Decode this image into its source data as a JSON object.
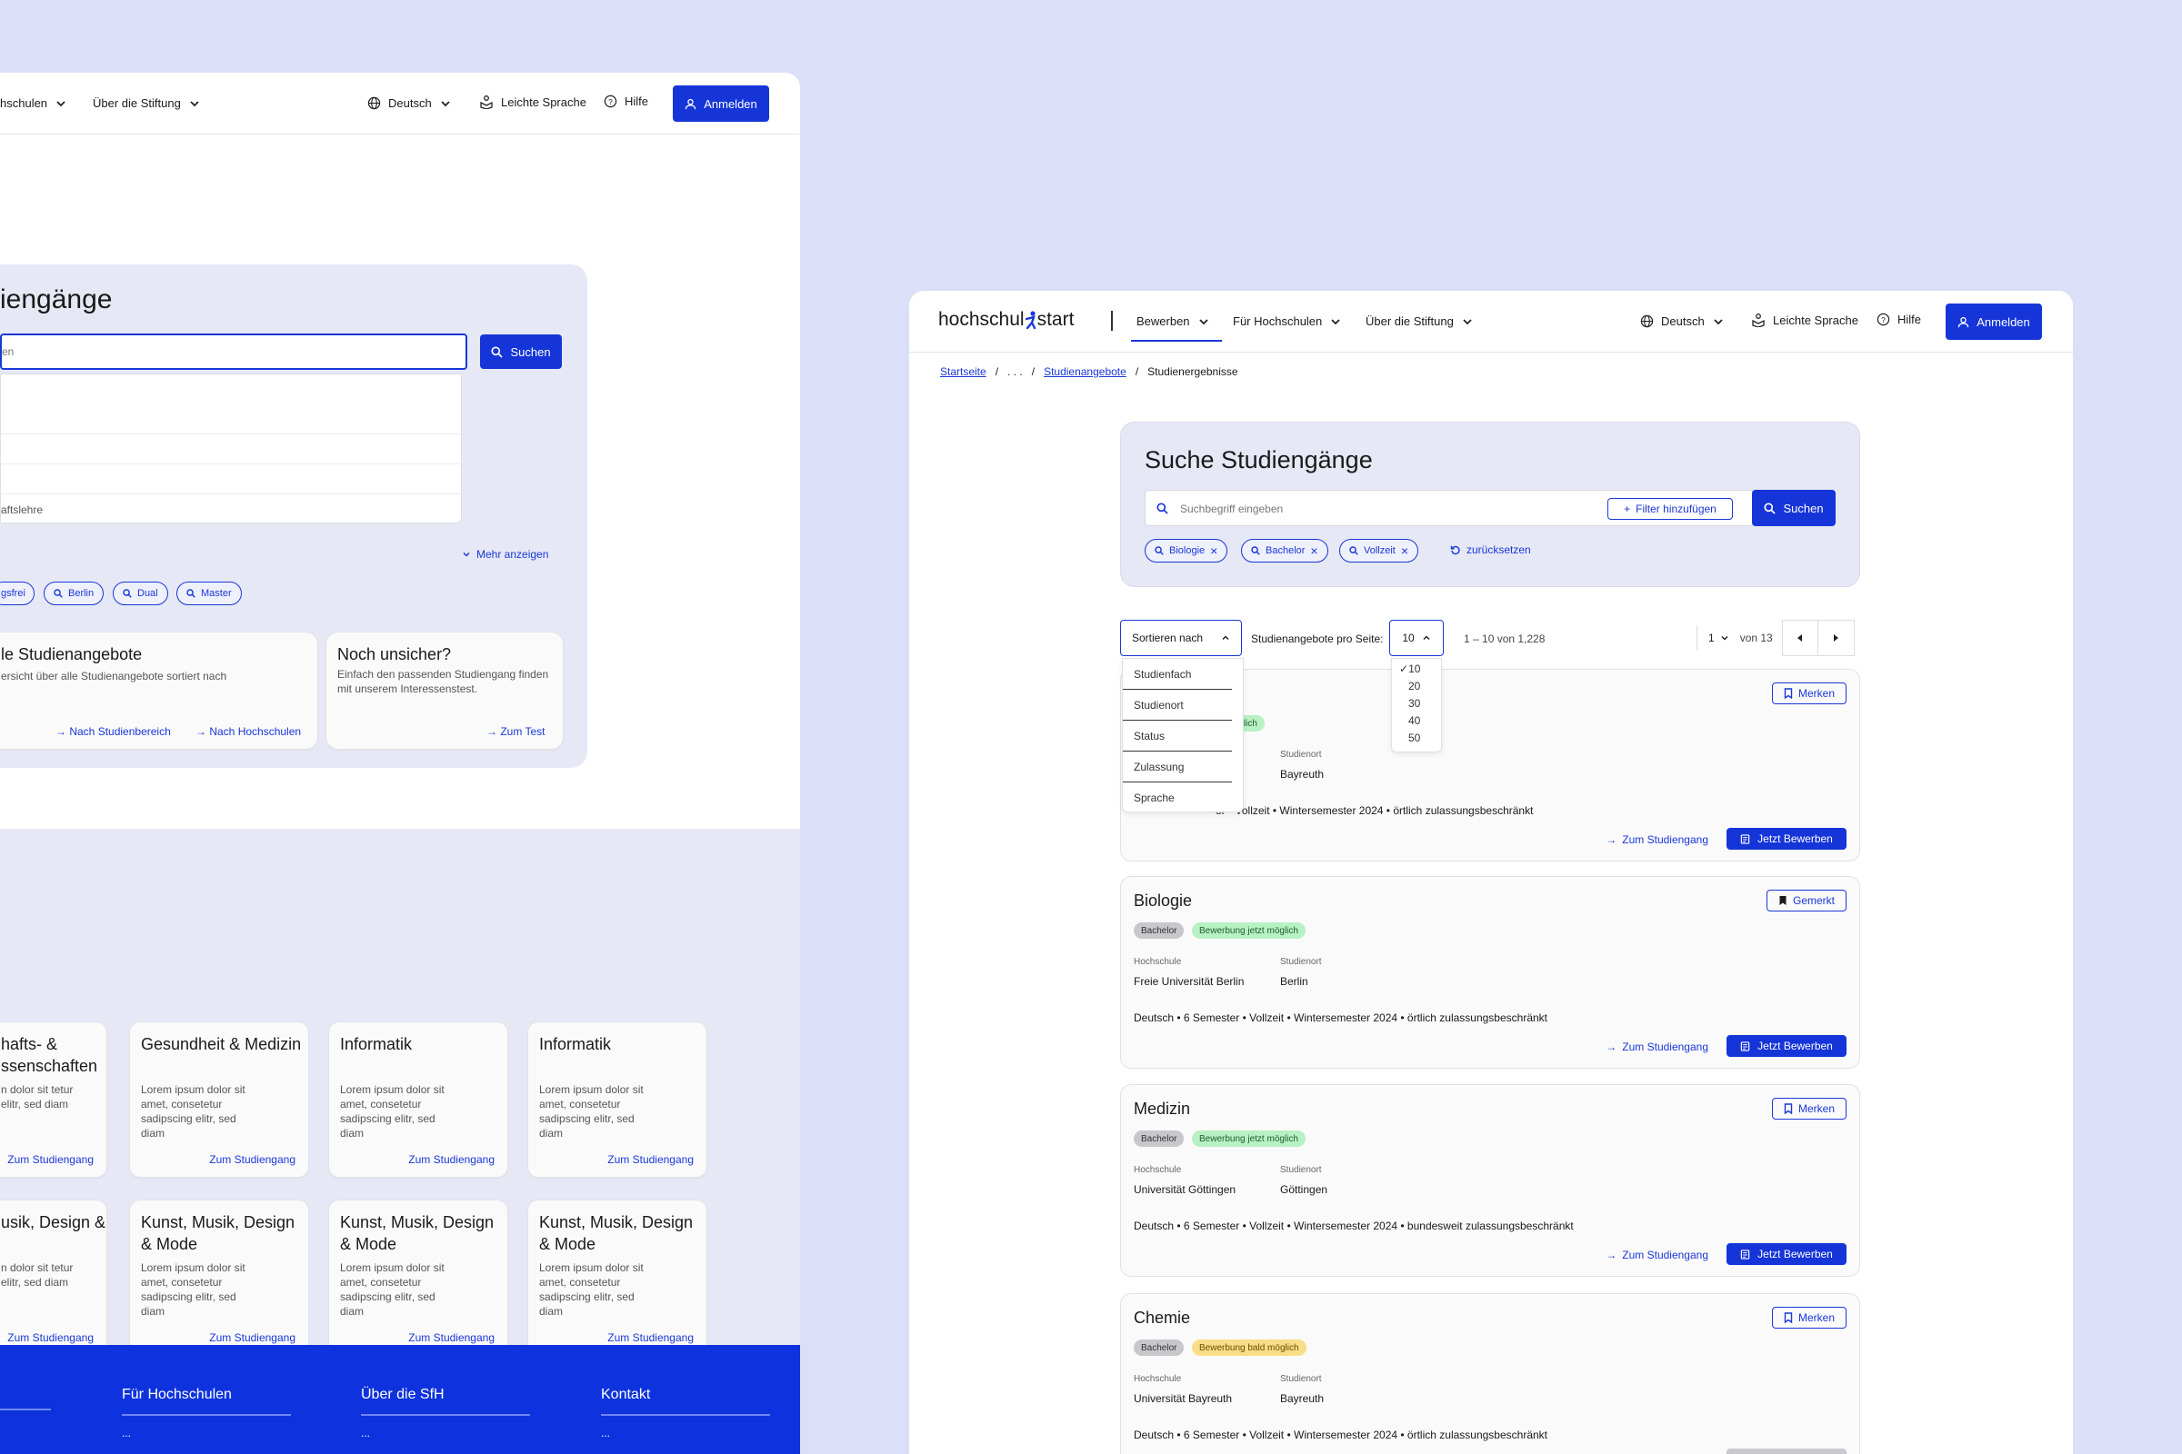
{
  "left": {
    "nav": {
      "item1": "hschulen",
      "item2": "Über die Stiftung",
      "lang": "Deutsch",
      "easy": "Leichte Sprache",
      "help": "Hilfe",
      "login": "Anmelden"
    },
    "search": {
      "title": "iengänge",
      "placeholder": "en",
      "button": "Suchen",
      "suggestion": "aftslehre",
      "more": "Mehr anzeigen"
    },
    "chips": [
      "gsfrei",
      "Berlin",
      "Dual",
      "Master"
    ],
    "promo": [
      {
        "title": "le Studienangebote",
        "text": "ersicht über alle Studienangebote sortiert nach",
        "link1": "Nach Studienbereich",
        "link2": "Nach Hochschulen"
      },
      {
        "title": "Noch unsicher?",
        "text": "Einfach den passenden Studiengang finden mit unserem Interessenstest.",
        "link1": "Zum Test"
      }
    ],
    "cards_row1": [
      {
        "title": "hafts- & ssenschaften",
        "text": "n dolor sit tetur elitr, sed diam",
        "link": "Zum Studiengang"
      },
      {
        "title": "Gesundheit & Medizin",
        "text": "Lorem ipsum dolor sit amet, consetetur sadipscing elitr, sed diam",
        "link": "Zum Studiengang"
      },
      {
        "title": "Informatik",
        "text": "Lorem ipsum dolor sit amet, consetetur sadipscing elitr, sed diam",
        "link": "Zum Studiengang"
      },
      {
        "title": "Informatik",
        "text": "Lorem ipsum dolor sit amet, consetetur sadipscing elitr, sed diam",
        "link": "Zum Studiengang"
      }
    ],
    "cards_row2": [
      {
        "title": "usik, Design &",
        "text": "n dolor sit tetur elitr, sed diam",
        "link": "Zum Studiengang"
      },
      {
        "title": "Kunst, Musik, Design & Mode",
        "text": "Lorem ipsum dolor sit amet, consetetur sadipscing elitr, sed diam",
        "link": "Zum Studiengang"
      },
      {
        "title": "Kunst, Musik, Design & Mode",
        "text": "Lorem ipsum dolor sit amet, consetetur sadipscing elitr, sed diam",
        "link": "Zum Studiengang"
      },
      {
        "title": "Kunst, Musik, Design & Mode",
        "text": "Lorem ipsum dolor sit amet, consetetur sadipscing elitr, sed diam",
        "link": "Zum Studiengang"
      }
    ],
    "footer": [
      {
        "title": "Für Hochschulen",
        "sub": "..."
      },
      {
        "title": "Über die SfH",
        "sub": "..."
      },
      {
        "title": "Kontakt",
        "sub": "..."
      }
    ]
  },
  "right": {
    "logo": {
      "a": "hochschul",
      "b": "start"
    },
    "nav": {
      "item1": "Bewerben",
      "item2": "Für Hochschulen",
      "item3": "Über die Stiftung",
      "lang": "Deutsch",
      "easy": "Leichte Sprache",
      "help": "Hilfe",
      "login": "Anmelden"
    },
    "breadcrumb": {
      "home": "Startseite",
      "sep": "/",
      "ellipsis": ". . .",
      "offers": "Studienangebote",
      "current": "Studienergebnisse"
    },
    "search": {
      "title": "Suche Studiengänge",
      "placeholder": "Suchbegriff eingeben",
      "filter": "Filter hinzufügen",
      "button": "Suchen",
      "chips": [
        "Biologie",
        "Bachelor",
        "Vollzeit"
      ],
      "reset": "zurücksetzen"
    },
    "toolbar": {
      "sort": "Sortieren nach",
      "per_page_label": "Studienangebote pro Seite:",
      "per_page": "10",
      "range": "1 – 10 von 1,228",
      "page": "1",
      "of": "von 13"
    },
    "sort_options": [
      "Studienfach",
      "Studienort",
      "Status",
      "Zulassung",
      "Sprache"
    ],
    "per_page_options": [
      "10",
      "20",
      "30",
      "40",
      "50"
    ],
    "hochschule_label": "Hochschule",
    "studienort_label": "Studienort",
    "zum": "Zum Studiengang",
    "jetzt": "Jetzt Bewerben",
    "bullet": "•",
    "results": [
      {
        "title": "",
        "tag1": "",
        "tag2": "g jetzt möglich",
        "hochschule": "",
        "ort": "Bayreuth",
        "facts": "or  •  Vollzeit  •  Wintersemester 2024  •  örtlich zulassungsbeschränkt",
        "merk": "Merken"
      },
      {
        "title": "Biologie",
        "tag1": "Bachelor",
        "tag2": "Bewerbung jetzt möglich",
        "hochschule": "Freie Universität Berlin",
        "ort": "Berlin",
        "facts": "Deutsch  •  6 Semester  •  Vollzeit  •  Wintersemester 2024  •  örtlich zulassungsbeschränkt",
        "merk": "Gemerkt"
      },
      {
        "title": "Medizin",
        "tag1": "Bachelor",
        "tag2": "Bewerbung jetzt möglich",
        "hochschule": "Universität Göttingen",
        "ort": "Göttingen",
        "facts": "Deutsch  •  6 Semester  •  Vollzeit  •  Wintersemester 2024  •  bundesweit zulassungsbeschränkt",
        "merk": "Merken"
      },
      {
        "title": "Chemie",
        "tag1": "Bachelor",
        "tag2": "Bewerbung bald möglich",
        "hochschule": "Universität Bayreuth",
        "ort": "Bayreuth",
        "facts": "Deutsch  •  6 Semester  •  Vollzeit  •  Wintersemester 2024  •  örtlich zulassungsbeschränkt",
        "merk": "Merken"
      }
    ]
  }
}
